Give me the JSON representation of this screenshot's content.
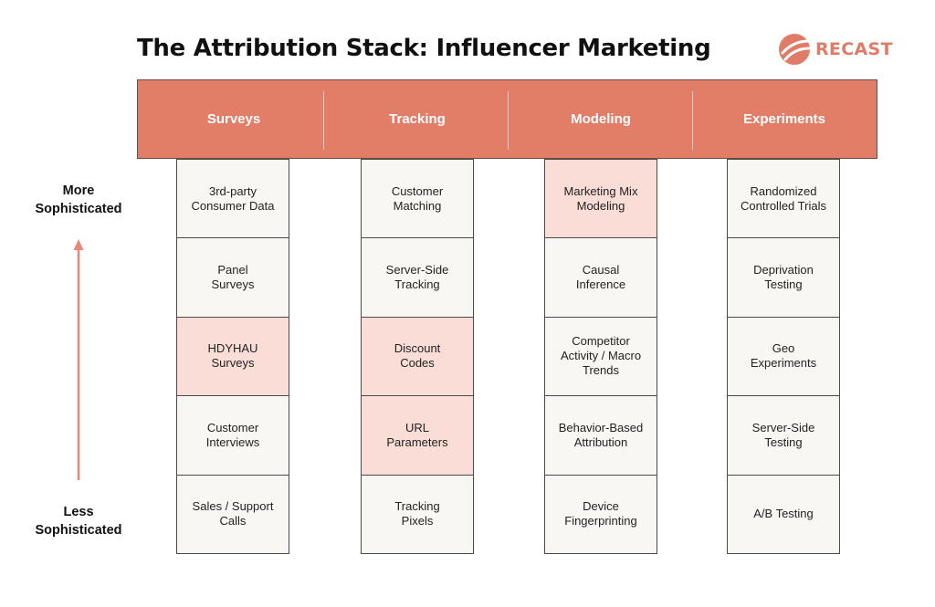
{
  "title": "The Attribution Stack: Influencer Marketing",
  "logo": {
    "text": "RECAST",
    "color": "#e07b67"
  },
  "axis": {
    "top_label": "More\nSophisticated",
    "bottom_label": "Less\nSophisticated",
    "arrow_color": "#e8867a"
  },
  "colors": {
    "header": "#e27d68",
    "cell": "#f8f7f3",
    "highlight": "#f9ddd6"
  },
  "columns": [
    {
      "header": "Surveys",
      "cells": [
        {
          "text": "3rd-party\nConsumer Data",
          "highlighted": false
        },
        {
          "text": "Panel\nSurveys",
          "highlighted": false
        },
        {
          "text": "HDYHAU\nSurveys",
          "highlighted": true
        },
        {
          "text": "Customer\nInterviews",
          "highlighted": false
        },
        {
          "text": "Sales / Support\nCalls",
          "highlighted": false
        }
      ]
    },
    {
      "header": "Tracking",
      "cells": [
        {
          "text": "Customer\nMatching",
          "highlighted": false
        },
        {
          "text": "Server-Side\nTracking",
          "highlighted": false
        },
        {
          "text": "Discount\nCodes",
          "highlighted": true
        },
        {
          "text": "URL\nParameters",
          "highlighted": true
        },
        {
          "text": "Tracking\nPixels",
          "highlighted": false
        }
      ]
    },
    {
      "header": "Modeling",
      "cells": [
        {
          "text": "Marketing Mix\nModeling",
          "highlighted": true
        },
        {
          "text": "Causal\nInference",
          "highlighted": false
        },
        {
          "text": "Competitor\nActivity / Macro\nTrends",
          "highlighted": false
        },
        {
          "text": "Behavior-Based\nAttribution",
          "highlighted": false
        },
        {
          "text": "Device\nFingerprinting",
          "highlighted": false
        }
      ]
    },
    {
      "header": "Experiments",
      "cells": [
        {
          "text": "Randomized\nControlled Trials",
          "highlighted": false
        },
        {
          "text": "Deprivation\nTesting",
          "highlighted": false
        },
        {
          "text": "Geo\nExperiments",
          "highlighted": false
        },
        {
          "text": "Server-Side\nTesting",
          "highlighted": false
        },
        {
          "text": "A/B Testing",
          "highlighted": false
        }
      ]
    }
  ]
}
